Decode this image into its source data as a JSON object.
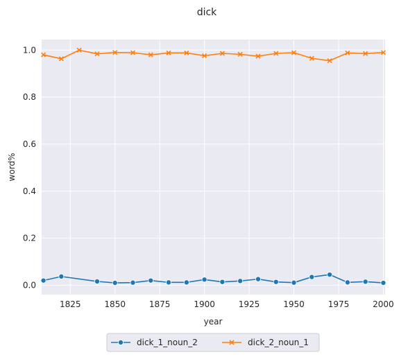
{
  "chart_data": {
    "type": "line",
    "title": "dick",
    "xlabel": "year",
    "ylabel": "word%",
    "xlim": [
      1809,
      2001
    ],
    "ylim": [
      -0.04,
      1.045
    ],
    "xticks": [
      1825,
      1850,
      1875,
      1900,
      1925,
      1950,
      1975,
      2000
    ],
    "xtick_labels": [
      "1825",
      "1850",
      "1875",
      "1900",
      "1925",
      "1950",
      "1975",
      "2000"
    ],
    "yticks": [
      0.0,
      0.2,
      0.4,
      0.6,
      0.8,
      1.0
    ],
    "ytick_labels": [
      "0.0",
      "0.2",
      "0.4",
      "0.6",
      "0.8",
      "1.0"
    ],
    "grid": true,
    "legend_position": "bottom-center",
    "x": [
      1810,
      1820,
      1830,
      1840,
      1850,
      1860,
      1870,
      1880,
      1890,
      1900,
      1910,
      1920,
      1930,
      1940,
      1950,
      1960,
      1970,
      1980,
      1990,
      2000
    ],
    "series": [
      {
        "name": "dick_1_noun_2",
        "color": "#1f77b4",
        "marker": "circle",
        "x": [
          1810,
          1820,
          1840,
          1850,
          1860,
          1870,
          1880,
          1890,
          1900,
          1910,
          1920,
          1930,
          1940,
          1950,
          1960,
          1970,
          1980,
          1990,
          2000
        ],
        "values": [
          0.02,
          0.037,
          0.016,
          0.01,
          0.011,
          0.02,
          0.012,
          0.012,
          0.024,
          0.014,
          0.018,
          0.026,
          0.014,
          0.011,
          0.035,
          0.045,
          0.012,
          0.015,
          0.01
        ]
      },
      {
        "name": "dick_2_noun_1",
        "color": "#ff7f0e",
        "marker": "x",
        "x": [
          1810,
          1820,
          1830,
          1840,
          1850,
          1860,
          1870,
          1880,
          1890,
          1900,
          1910,
          1920,
          1930,
          1940,
          1950,
          1960,
          1970,
          1980,
          1990,
          2000
        ],
        "values": [
          0.98,
          0.963,
          1.0,
          0.984,
          0.99,
          0.989,
          0.98,
          0.988,
          0.988,
          0.976,
          0.986,
          0.982,
          0.974,
          0.986,
          0.989,
          0.965,
          0.955,
          0.988,
          0.985,
          0.99
        ]
      }
    ]
  }
}
